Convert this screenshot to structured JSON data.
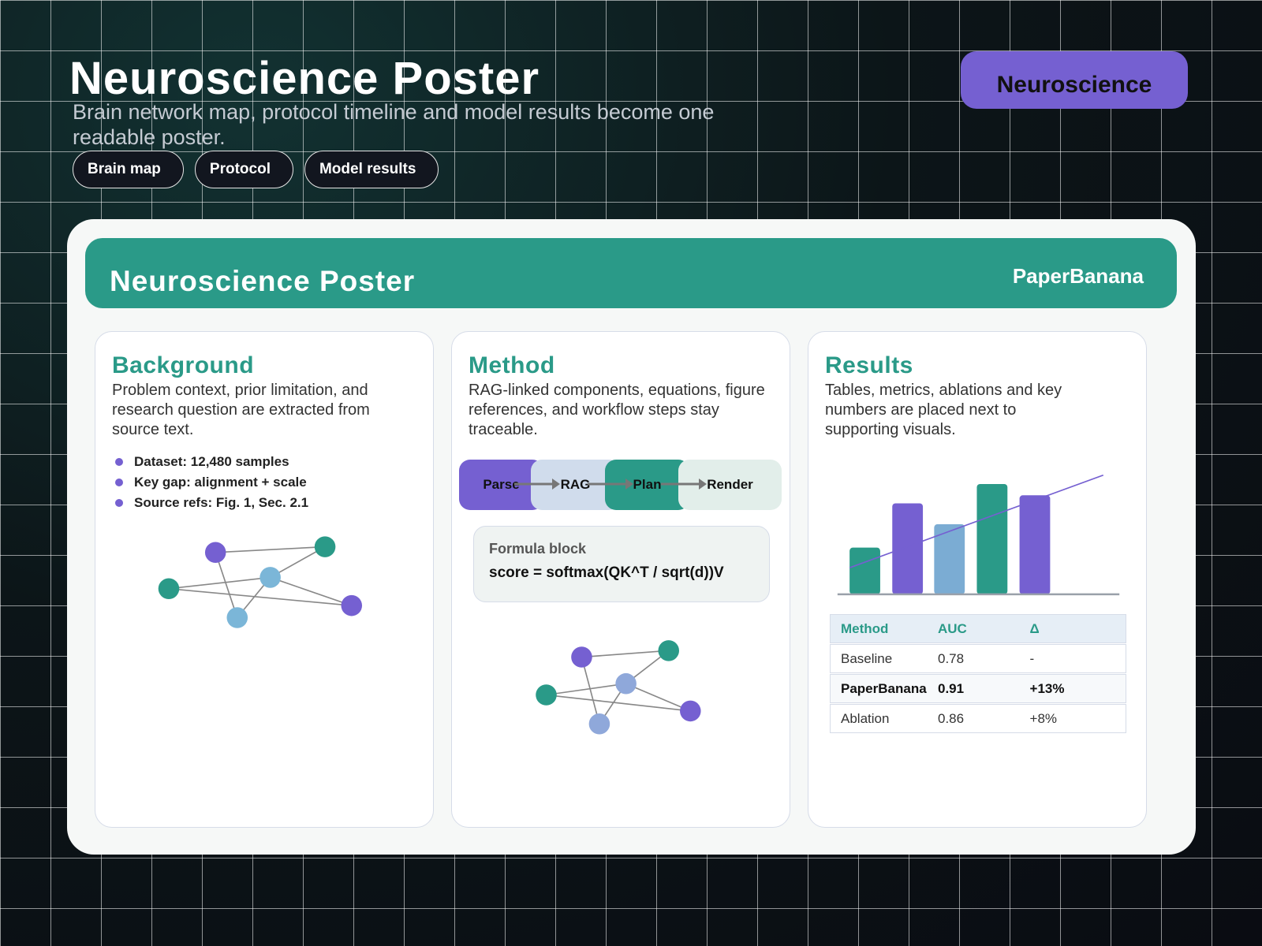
{
  "header": {
    "title": "Neuroscience Poster",
    "subtitle": "Brain network map, protocol timeline and model results become one readable poster.",
    "tags": [
      "Brain map",
      "Protocol",
      "Model results"
    ],
    "badge": "Neuroscience"
  },
  "poster": {
    "title": "Neuroscience Poster",
    "brand": "PaperBanana"
  },
  "background": {
    "heading": "Background",
    "text": "Problem context, prior limitation, and research question are extracted from source text.",
    "bullets": [
      "Dataset: 12,480 samples",
      "Key gap: alignment + scale",
      "Source refs: Fig. 1, Sec. 2.1"
    ]
  },
  "method": {
    "heading": "Method",
    "text": "RAG-linked components, equations, figure references, and workflow steps stay traceable.",
    "pipeline": [
      "Parse",
      "RAG",
      "Plan",
      "Render"
    ],
    "formula": {
      "label": "Formula block",
      "expression": "score = softmax(QK^T / sqrt(d))V"
    }
  },
  "results": {
    "heading": "Results",
    "text": "Tables, metrics, ablations and key numbers are placed next to supporting visuals.",
    "table": {
      "header": [
        "Method",
        "AUC",
        "Δ"
      ],
      "rows": [
        [
          "Baseline",
          "0.78",
          "-"
        ],
        [
          "PaperBanana",
          "0.91",
          "+13%"
        ],
        [
          "Ablation",
          "0.86",
          "+8%"
        ]
      ]
    }
  }
}
